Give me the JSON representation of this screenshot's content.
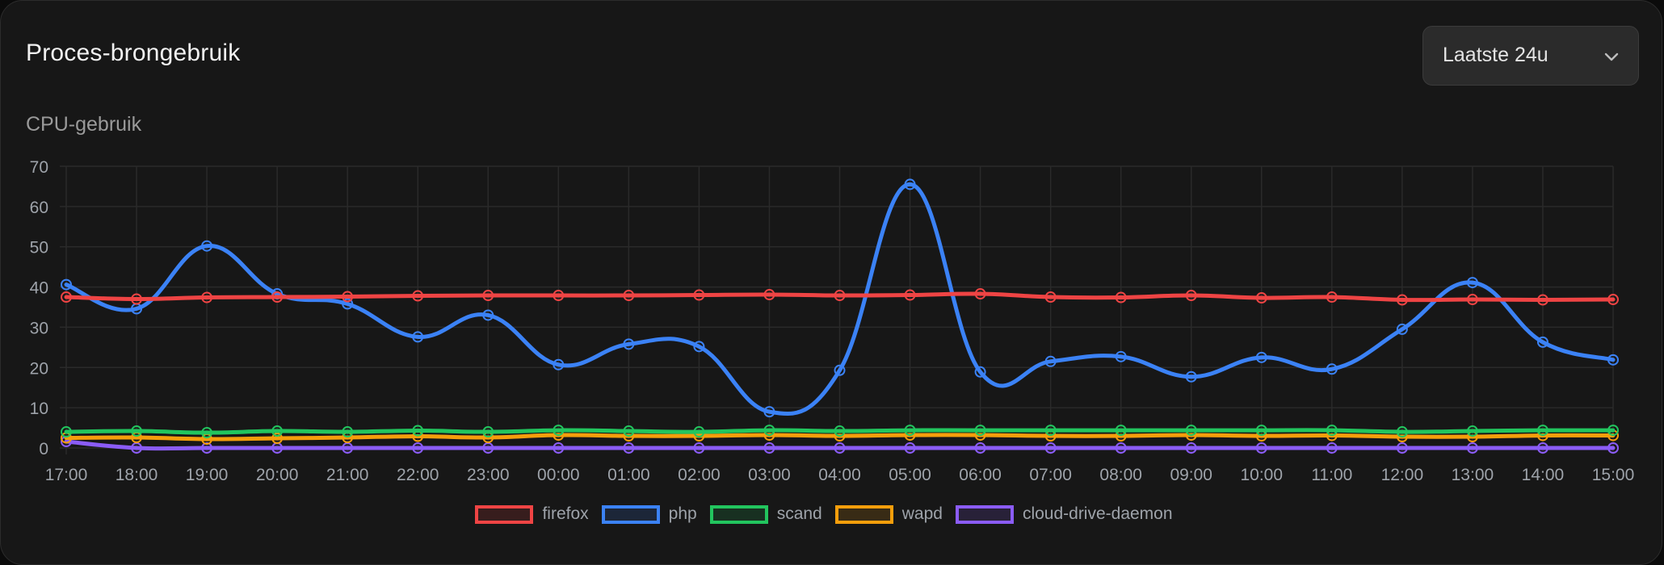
{
  "header": {
    "title": "Proces-brongebruik",
    "range_select": {
      "value": "Laatste 24u",
      "icon": "chevron-down-icon"
    }
  },
  "chart_section": {
    "subtitle": "CPU-gebruik"
  },
  "chart_data": {
    "type": "line",
    "title": "CPU-gebruik",
    "xlabel": "",
    "ylabel": "",
    "ylim": [
      0,
      70
    ],
    "yticks": [
      0,
      10,
      20,
      30,
      40,
      50,
      60,
      70
    ],
    "grid": true,
    "legend_position": "bottom",
    "categories": [
      "17:00",
      "18:00",
      "19:00",
      "20:00",
      "21:00",
      "22:00",
      "23:00",
      "00:00",
      "01:00",
      "02:00",
      "03:00",
      "04:00",
      "05:00",
      "06:00",
      "07:00",
      "08:00",
      "09:00",
      "10:00",
      "11:00",
      "12:00",
      "13:00",
      "14:00",
      "15:00"
    ],
    "series": [
      {
        "name": "firefox",
        "color": "#ef4444",
        "values": [
          37.5,
          37.0,
          37.4,
          37.5,
          37.6,
          37.8,
          37.9,
          37.9,
          37.9,
          38.0,
          38.1,
          37.9,
          38.0,
          38.3,
          37.5,
          37.4,
          37.9,
          37.3,
          37.5,
          36.8,
          36.9,
          36.8,
          36.9
        ]
      },
      {
        "name": "php",
        "color": "#3b82f6",
        "values": [
          40.6,
          34.6,
          50.2,
          38.3,
          35.8,
          27.6,
          33.0,
          20.7,
          25.8,
          25.2,
          9.0,
          19.3,
          65.5,
          18.9,
          21.5,
          22.7,
          17.7,
          22.5,
          19.6,
          29.5,
          41.1,
          26.3,
          21.9
        ]
      },
      {
        "name": "scand",
        "color": "#22c55e",
        "values": [
          4.0,
          4.2,
          3.8,
          4.2,
          4.0,
          4.3,
          4.0,
          4.4,
          4.2,
          4.0,
          4.4,
          4.2,
          4.4,
          4.4,
          4.4,
          4.4,
          4.4,
          4.4,
          4.4,
          4.0,
          4.2,
          4.4,
          4.4
        ]
      },
      {
        "name": "wapd",
        "color": "#f59e0b",
        "values": [
          2.5,
          2.6,
          2.2,
          2.4,
          2.6,
          2.9,
          2.6,
          3.2,
          3.0,
          3.0,
          3.2,
          3.0,
          3.2,
          3.2,
          3.0,
          3.0,
          3.2,
          3.0,
          3.1,
          2.8,
          2.8,
          3.1,
          3.1
        ]
      },
      {
        "name": "cloud-drive-daemon",
        "color": "#8b5cf6",
        "values": [
          1.6,
          0,
          0,
          0,
          0,
          0,
          0,
          0,
          0,
          0,
          0,
          0,
          0,
          0,
          0,
          0,
          0,
          0,
          0,
          0,
          0,
          0,
          0
        ]
      }
    ]
  },
  "colors": {
    "card_bg": "#171717",
    "grid": "#2a2a2a",
    "tick_label": "#9ea3aa"
  }
}
